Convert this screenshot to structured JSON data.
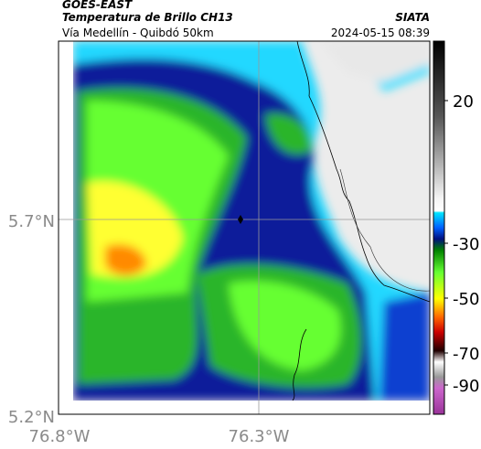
{
  "header": {
    "satellite": "GOES-EAST",
    "title": "Temperatura de Brillo CH13",
    "source": "SIATA",
    "subtitle": "Vía Medellín - Quibdó 50km",
    "datetime": "2024-05-15 08:39"
  },
  "map": {
    "lat_labels": [
      "5.7°N",
      "5.2°N"
    ],
    "lon_labels": [
      "76.8°W",
      "76.3°W"
    ]
  },
  "colorbar": {
    "labels": [
      "20",
      "-30",
      "-50",
      "-70",
      "-90"
    ]
  }
}
